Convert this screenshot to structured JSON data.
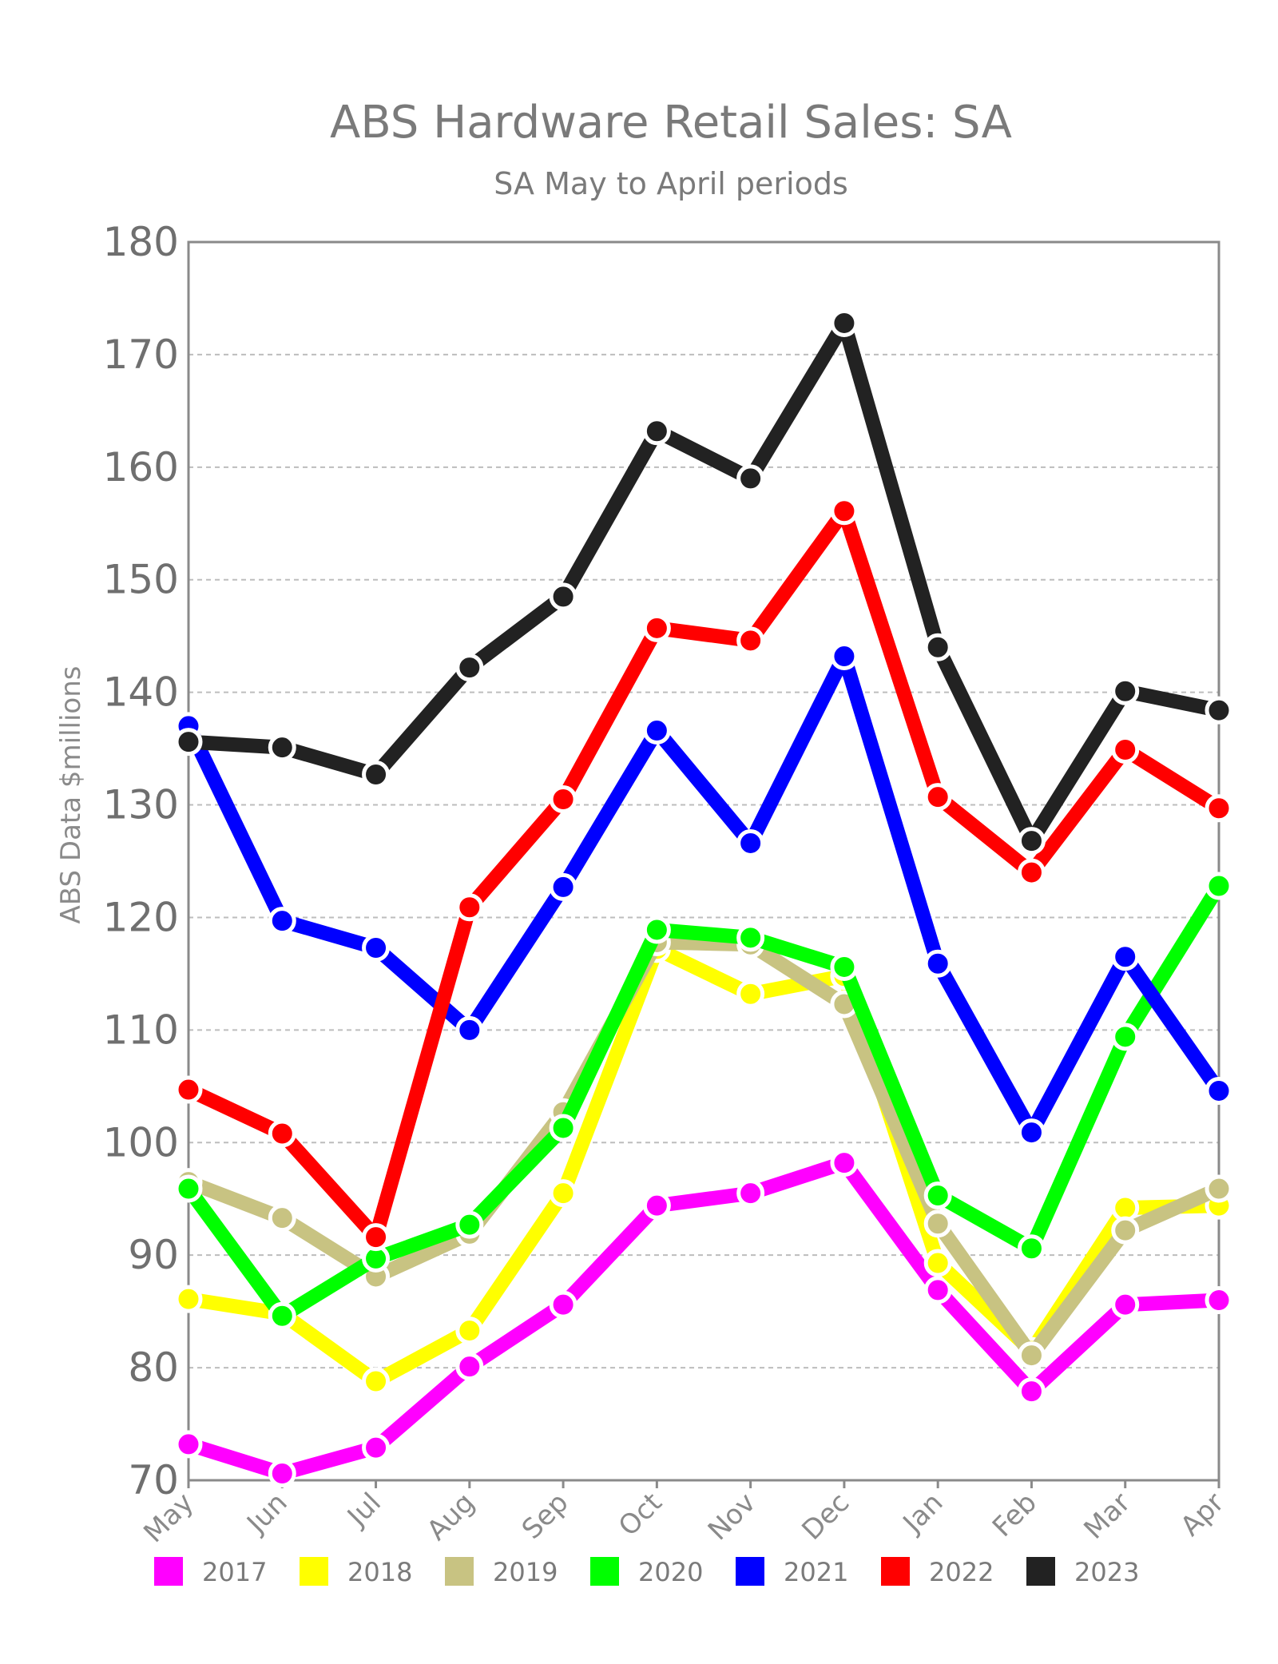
{
  "chart_data": {
    "type": "line",
    "title": "ABS Hardware Retail Sales: SA",
    "subtitle": "SA May to April periods",
    "ylabel": "ABS Data $millions",
    "xlabel": "",
    "ylim": [
      70,
      180
    ],
    "yticks": [
      "70",
      "80",
      "90",
      "100",
      "110",
      "120",
      "130",
      "140",
      "150",
      "160",
      "170",
      "180"
    ],
    "grid": true,
    "legend_position": "bottom",
    "categories": [
      "May",
      "Jun",
      "Jul",
      "Aug",
      "Sep",
      "Oct",
      "Nov",
      "Dec",
      "Jan",
      "Feb",
      "Mar",
      "Apr"
    ],
    "series": [
      {
        "name": "2017",
        "color": "#ff00ff",
        "values": [
          73.2,
          70.6,
          72.9,
          80.1,
          85.6,
          94.4,
          95.5,
          98.2,
          86.9,
          77.9,
          85.6,
          86.0
        ]
      },
      {
        "name": "2018",
        "color": "#ffff00",
        "values": [
          86.1,
          84.8,
          78.8,
          83.3,
          95.5,
          117.2,
          113.2,
          114.8,
          89.3,
          81.5,
          94.2,
          94.4
        ]
      },
      {
        "name": "2019",
        "color": "#c8c382",
        "values": [
          96.5,
          93.3,
          88.1,
          91.9,
          102.7,
          117.8,
          117.6,
          112.3,
          92.8,
          81.1,
          92.2,
          95.9
        ]
      },
      {
        "name": "2020",
        "color": "#00ff00",
        "values": [
          95.9,
          84.6,
          89.7,
          92.7,
          101.3,
          118.9,
          118.2,
          115.6,
          95.3,
          90.6,
          109.4,
          122.8
        ]
      },
      {
        "name": "2021",
        "color": "#0000ff",
        "values": [
          137.0,
          119.7,
          117.3,
          110.0,
          122.7,
          136.6,
          126.6,
          143.2,
          115.9,
          100.9,
          116.5,
          104.6
        ]
      },
      {
        "name": "2022",
        "color": "#ff0000",
        "values": [
          104.7,
          100.8,
          91.6,
          120.9,
          130.5,
          145.7,
          144.6,
          156.1,
          130.7,
          124.0,
          134.9,
          129.7
        ]
      },
      {
        "name": "2023",
        "color": "#222222",
        "values": [
          135.6,
          135.1,
          132.7,
          142.2,
          148.5,
          163.2,
          159.0,
          172.8,
          144.0,
          126.8,
          140.1,
          138.4
        ]
      }
    ]
  }
}
